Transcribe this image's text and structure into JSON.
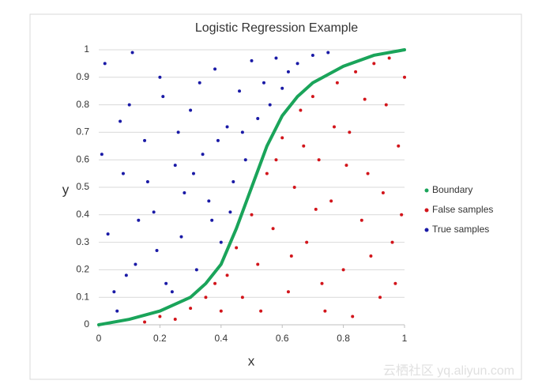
{
  "chart_data": {
    "type": "scatter",
    "title": "Logistic Regression Example",
    "x_label": "x",
    "y_label": "y",
    "xlim": [
      0,
      1
    ],
    "xticks": [
      0,
      0.2,
      0.4,
      0.6,
      0.8,
      1
    ],
    "ylim": [
      0,
      1
    ],
    "yticks": [
      0,
      0.1,
      0.2,
      0.3,
      0.4,
      0.5,
      0.6,
      0.7,
      0.8,
      0.9,
      1
    ],
    "grid": true,
    "legend": "right",
    "series": [
      {
        "name": "Boundary",
        "color": "#1aa45a",
        "style": "line",
        "x": [
          0,
          0.1,
          0.2,
          0.3,
          0.35,
          0.4,
          0.45,
          0.5,
          0.55,
          0.6,
          0.65,
          0.7,
          0.8,
          0.9,
          1
        ],
        "y": [
          0,
          0.02,
          0.05,
          0.1,
          0.15,
          0.22,
          0.35,
          0.5,
          0.65,
          0.76,
          0.83,
          0.88,
          0.94,
          0.98,
          1
        ]
      },
      {
        "name": "False samples",
        "color": "#d2151b",
        "style": "markers",
        "x": [
          0.15,
          0.2,
          0.25,
          0.3,
          0.35,
          0.38,
          0.4,
          0.42,
          0.45,
          0.47,
          0.5,
          0.52,
          0.55,
          0.57,
          0.6,
          0.62,
          0.64,
          0.66,
          0.68,
          0.7,
          0.72,
          0.74,
          0.76,
          0.78,
          0.8,
          0.82,
          0.84,
          0.86,
          0.88,
          0.9,
          0.92,
          0.94,
          0.96,
          0.98,
          1,
          0.53,
          0.58,
          0.63,
          0.67,
          0.71,
          0.73,
          0.77,
          0.81,
          0.83,
          0.87,
          0.89,
          0.93,
          0.95,
          0.97,
          0.99
        ],
        "y": [
          0.01,
          0.03,
          0.02,
          0.06,
          0.1,
          0.15,
          0.05,
          0.18,
          0.28,
          0.1,
          0.4,
          0.22,
          0.55,
          0.35,
          0.68,
          0.12,
          0.5,
          0.78,
          0.3,
          0.83,
          0.6,
          0.05,
          0.45,
          0.88,
          0.2,
          0.7,
          0.92,
          0.38,
          0.55,
          0.95,
          0.1,
          0.8,
          0.3,
          0.65,
          0.9,
          0.05,
          0.6,
          0.25,
          0.65,
          0.42,
          0.15,
          0.72,
          0.58,
          0.03,
          0.82,
          0.25,
          0.48,
          0.97,
          0.15,
          0.4
        ]
      },
      {
        "name": "True samples",
        "color": "#1a1aa6",
        "style": "markers",
        "x": [
          0.02,
          0.05,
          0.08,
          0.03,
          0.1,
          0.12,
          0.15,
          0.18,
          0.2,
          0.22,
          0.25,
          0.27,
          0.3,
          0.32,
          0.34,
          0.36,
          0.38,
          0.4,
          0.42,
          0.44,
          0.46,
          0.48,
          0.5,
          0.52,
          0.54,
          0.56,
          0.58,
          0.6,
          0.62,
          0.65,
          0.7,
          0.75,
          0.06,
          0.13,
          0.24,
          0.28,
          0.33,
          0.11,
          0.19,
          0.07,
          0.16,
          0.26,
          0.37,
          0.43,
          0.01,
          0.09,
          0.21,
          0.31,
          0.39,
          0.47
        ],
        "y": [
          0.95,
          0.12,
          0.55,
          0.33,
          0.8,
          0.22,
          0.67,
          0.41,
          0.9,
          0.15,
          0.58,
          0.32,
          0.78,
          0.2,
          0.62,
          0.45,
          0.93,
          0.3,
          0.72,
          0.52,
          0.85,
          0.6,
          0.96,
          0.75,
          0.88,
          0.8,
          0.97,
          0.86,
          0.92,
          0.95,
          0.98,
          0.99,
          0.05,
          0.38,
          0.12,
          0.48,
          0.88,
          0.99,
          0.27,
          0.74,
          0.52,
          0.7,
          0.38,
          0.41,
          0.62,
          0.18,
          0.83,
          0.55,
          0.67,
          0.7
        ]
      }
    ]
  },
  "watermark": "云栖社区 yq.aliyun.com"
}
